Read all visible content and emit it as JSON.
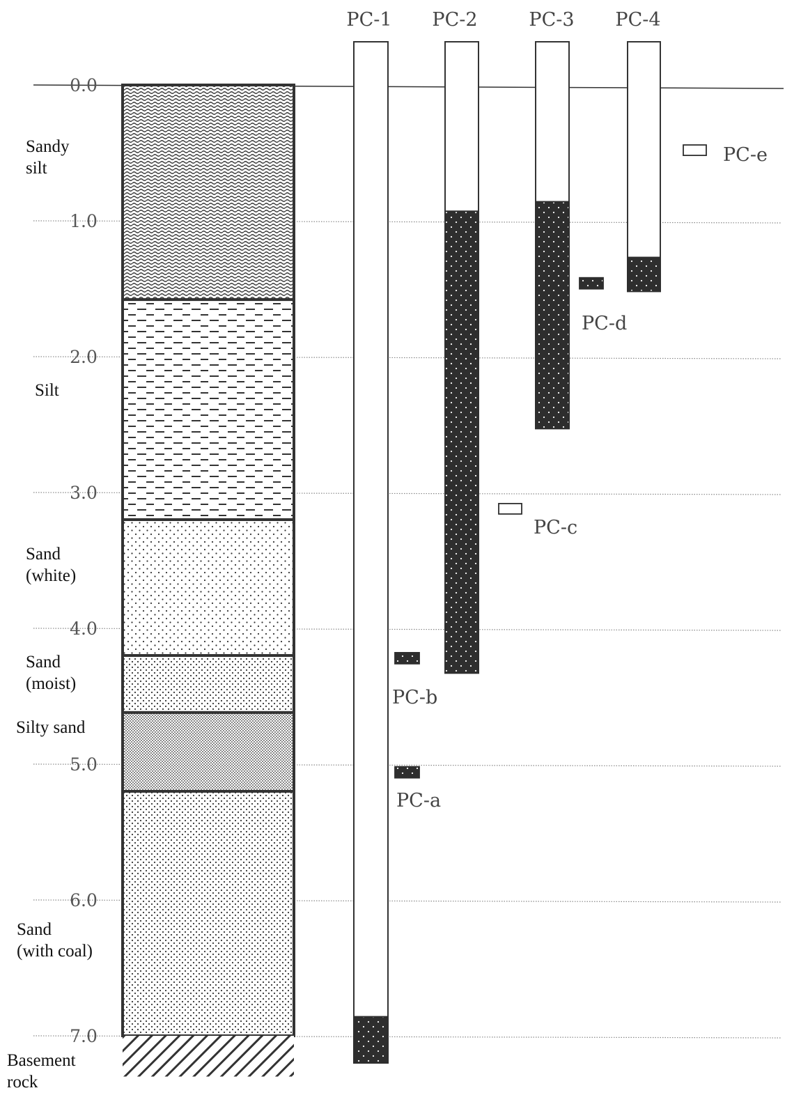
{
  "depth_axis": {
    "unit": "",
    "ticks": [
      "0.0",
      "1.0",
      "2.0",
      "3.0",
      "4.0",
      "5.0",
      "6.0",
      "7.0"
    ]
  },
  "layers": [
    {
      "id": "sandy-silt",
      "label_lines": [
        "Sandy",
        "silt"
      ],
      "top": 0.0,
      "bottom": 1.58,
      "pattern": "wavy"
    },
    {
      "id": "silt",
      "label_lines": [
        "Silt"
      ],
      "top": 1.58,
      "bottom": 3.2,
      "pattern": "dashes"
    },
    {
      "id": "sand-white",
      "label_lines": [
        "Sand",
        "(white)"
      ],
      "top": 3.2,
      "bottom": 4.2,
      "pattern": "sparse-dots"
    },
    {
      "id": "sand-moist",
      "label_lines": [
        "Sand",
        "(moist)"
      ],
      "top": 4.2,
      "bottom": 4.62,
      "pattern": "dots"
    },
    {
      "id": "silty-sand",
      "label_lines": [
        "Silty sand"
      ],
      "top": 4.62,
      "bottom": 5.2,
      "pattern": "dense-dots"
    },
    {
      "id": "sand-coal",
      "label_lines": [
        "Sand",
        "(with coal)"
      ],
      "top": 5.2,
      "bottom": 7.0,
      "pattern": "dots"
    },
    {
      "id": "basement-rock",
      "label_lines": [
        "Basement",
        "rock"
      ],
      "top": 7.0,
      "bottom": 7.3,
      "pattern": "hatch"
    }
  ],
  "columns": [
    {
      "label": "PC-1",
      "top": -0.33,
      "bottom": 7.2,
      "filled_from": 6.86
    },
    {
      "label": "PC-2",
      "top": -0.33,
      "bottom": 4.33,
      "filled_from": 0.93
    },
    {
      "label": "PC-3",
      "top": -0.33,
      "bottom": 2.53,
      "filled_from": 0.86
    },
    {
      "label": "PC-4",
      "top": -0.33,
      "bottom": 1.52,
      "filled_from": 1.27
    }
  ],
  "samples": [
    {
      "label": "PC-e",
      "depth": 0.48,
      "filled": false
    },
    {
      "label": "PC-d",
      "depth": 1.46,
      "filled": true
    },
    {
      "label": "PC-c",
      "depth": 3.12,
      "filled": false
    },
    {
      "label": "PC-b",
      "depth": 4.22,
      "filled": true
    },
    {
      "label": "PC-a",
      "depth": 5.06,
      "filled": true
    }
  ],
  "colors": {
    "ink": "#333333",
    "filled": "#2e2e2e",
    "gridline": "#888888"
  }
}
